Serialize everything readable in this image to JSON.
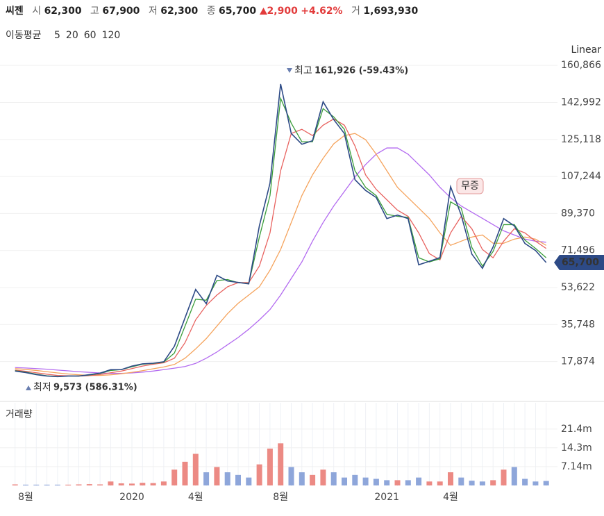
{
  "header": {
    "name": "씨젠",
    "open_label": "시",
    "open": "62,300",
    "high_label": "고",
    "high": "67,900",
    "low_label": "저",
    "low": "62,300",
    "close_label": "종",
    "close": "65,700",
    "change": "2,900",
    "change_pct": "+4.62%",
    "volume_label": "거",
    "volume": "1,693,930"
  },
  "chart_data": [
    {
      "type": "line",
      "legend_title": "이동평균",
      "scale_label": "Linear",
      "grid": true,
      "ylim": [
        0,
        175000
      ],
      "yticks": [
        {
          "value": 17874,
          "label": "17,874"
        },
        {
          "value": 35748,
          "label": "35,748"
        },
        {
          "value": 53622,
          "label": "53,622"
        },
        {
          "value": 71496,
          "label": "71,496"
        },
        {
          "value": 89370,
          "label": "89,370"
        },
        {
          "value": 107244,
          "label": "107,244"
        },
        {
          "value": 125118,
          "label": "125,118"
        },
        {
          "value": 142992,
          "label": "142,992"
        },
        {
          "value": 160866,
          "label": "160,866"
        }
      ],
      "annotations": {
        "high_text": "최고",
        "high_value": "161,926 (-59.43%)",
        "low_text": "최저",
        "low_value": "9,573 (586.31%)",
        "event": "무증",
        "last_label": "65,700"
      },
      "series": [
        {
          "color": "#2d4a86",
          "values": [
            13300,
            12600,
            11600,
            10900,
            10600,
            10900,
            10900,
            11600,
            12300,
            14000,
            14000,
            15700,
            16800,
            17100,
            17800,
            25300,
            39000,
            52700,
            45800,
            59500,
            56800,
            56100,
            55400,
            83400,
            104000,
            151900,
            128000,
            122800,
            124500,
            143300,
            134700,
            128000,
            105700,
            100500,
            97100,
            86900,
            88600,
            86900,
            64600,
            66300,
            68100,
            102300,
            88600,
            69800,
            62900,
            73200,
            86900,
            83400,
            74900,
            71500,
            65700
          ]
        },
        {
          "name": "5",
          "color": "#3a9d3a",
          "values": [
            13500,
            12800,
            11800,
            11000,
            10700,
            10900,
            10900,
            11400,
            12100,
            13600,
            14000,
            15400,
            16600,
            17000,
            17600,
            22000,
            35000,
            48000,
            47500,
            57000,
            57500,
            56000,
            55600,
            78000,
            98000,
            145000,
            133000,
            124000,
            124000,
            140000,
            136000,
            130000,
            110000,
            102000,
            98000,
            89000,
            88000,
            87500,
            68000,
            66000,
            67500,
            95000,
            92000,
            73000,
            64000,
            71000,
            84000,
            84000,
            76500,
            72500,
            68000
          ]
        },
        {
          "name": "20",
          "color": "#e8625f",
          "values": [
            13800,
            13200,
            12500,
            11800,
            11200,
            11000,
            10900,
            11100,
            11600,
            12500,
            13300,
            14500,
            15700,
            16600,
            17300,
            19500,
            27000,
            38000,
            45000,
            50000,
            54000,
            56000,
            56000,
            64000,
            80000,
            110000,
            128000,
            130000,
            127000,
            132000,
            135000,
            132000,
            122000,
            108000,
            101000,
            96000,
            91000,
            88000,
            80000,
            70000,
            67000,
            80000,
            88000,
            82000,
            72000,
            68000,
            76000,
            82000,
            80000,
            76000,
            72500
          ]
        },
        {
          "name": "60",
          "color": "#f5a35c",
          "values": [
            14500,
            14100,
            13600,
            13000,
            12400,
            11900,
            11500,
            11200,
            11200,
            11500,
            12000,
            12700,
            13500,
            14400,
            15300,
            16500,
            19500,
            24000,
            29000,
            35000,
            41000,
            46000,
            50000,
            54000,
            62000,
            72000,
            85000,
            98000,
            108000,
            116000,
            123000,
            127000,
            128000,
            125000,
            118000,
            110000,
            102000,
            97000,
            92000,
            87000,
            80000,
            74000,
            76000,
            78000,
            79000,
            75000,
            75000,
            77000,
            78000,
            77000,
            74000
          ]
        },
        {
          "name": "120",
          "color": "#b36bf0",
          "values": [
            15000,
            14800,
            14500,
            14200,
            13800,
            13400,
            13000,
            12700,
            12400,
            12200,
            12200,
            12400,
            12800,
            13300,
            14000,
            14700,
            15500,
            17000,
            19500,
            22500,
            26000,
            29500,
            33500,
            38000,
            43000,
            50000,
            58000,
            66000,
            76000,
            85000,
            93000,
            100000,
            107000,
            113000,
            118000,
            121000,
            121000,
            118000,
            113000,
            108000,
            102000,
            97000,
            93000,
            90000,
            87000,
            84000,
            81000,
            79000,
            77000,
            76000,
            75500
          ]
        }
      ]
    },
    {
      "type": "bar",
      "title": "거래량",
      "up_color": "#ec8a84",
      "down_color": "#8ea6da",
      "categories": [
        null,
        "8월",
        null,
        null,
        null,
        null,
        null,
        null,
        null,
        null,
        null,
        "2020",
        null,
        null,
        null,
        null,
        null,
        "4월",
        null,
        null,
        null,
        null,
        null,
        null,
        null,
        "8월",
        null,
        null,
        null,
        null,
        null,
        null,
        null,
        null,
        null,
        "2021",
        null,
        null,
        null,
        null,
        null,
        "4월",
        null,
        null,
        null,
        null,
        null,
        null,
        null,
        null,
        null
      ],
      "ylim": [
        0,
        24000000
      ],
      "yticks": [
        {
          "value": 7140000,
          "label": "7.14m"
        },
        {
          "value": 14300000,
          "label": "14.3m"
        },
        {
          "value": 21400000,
          "label": "21.4m"
        }
      ],
      "values": [
        400000,
        300000,
        300000,
        300000,
        300000,
        300000,
        400000,
        500000,
        400000,
        1500000,
        800000,
        700000,
        1000000,
        900000,
        1500000,
        6000000,
        9000000,
        12000000,
        5000000,
        7000000,
        5000000,
        4000000,
        3000000,
        8000000,
        14000000,
        16000000,
        7000000,
        5000000,
        4000000,
        6000000,
        5000000,
        3000000,
        4000000,
        3000000,
        2500000,
        2000000,
        2000000,
        2000000,
        3000000,
        1500000,
        1500000,
        5000000,
        3000000,
        1800000,
        1500000,
        2000000,
        6000000,
        7000000,
        2500000,
        1500000,
        1693930
      ]
    }
  ]
}
